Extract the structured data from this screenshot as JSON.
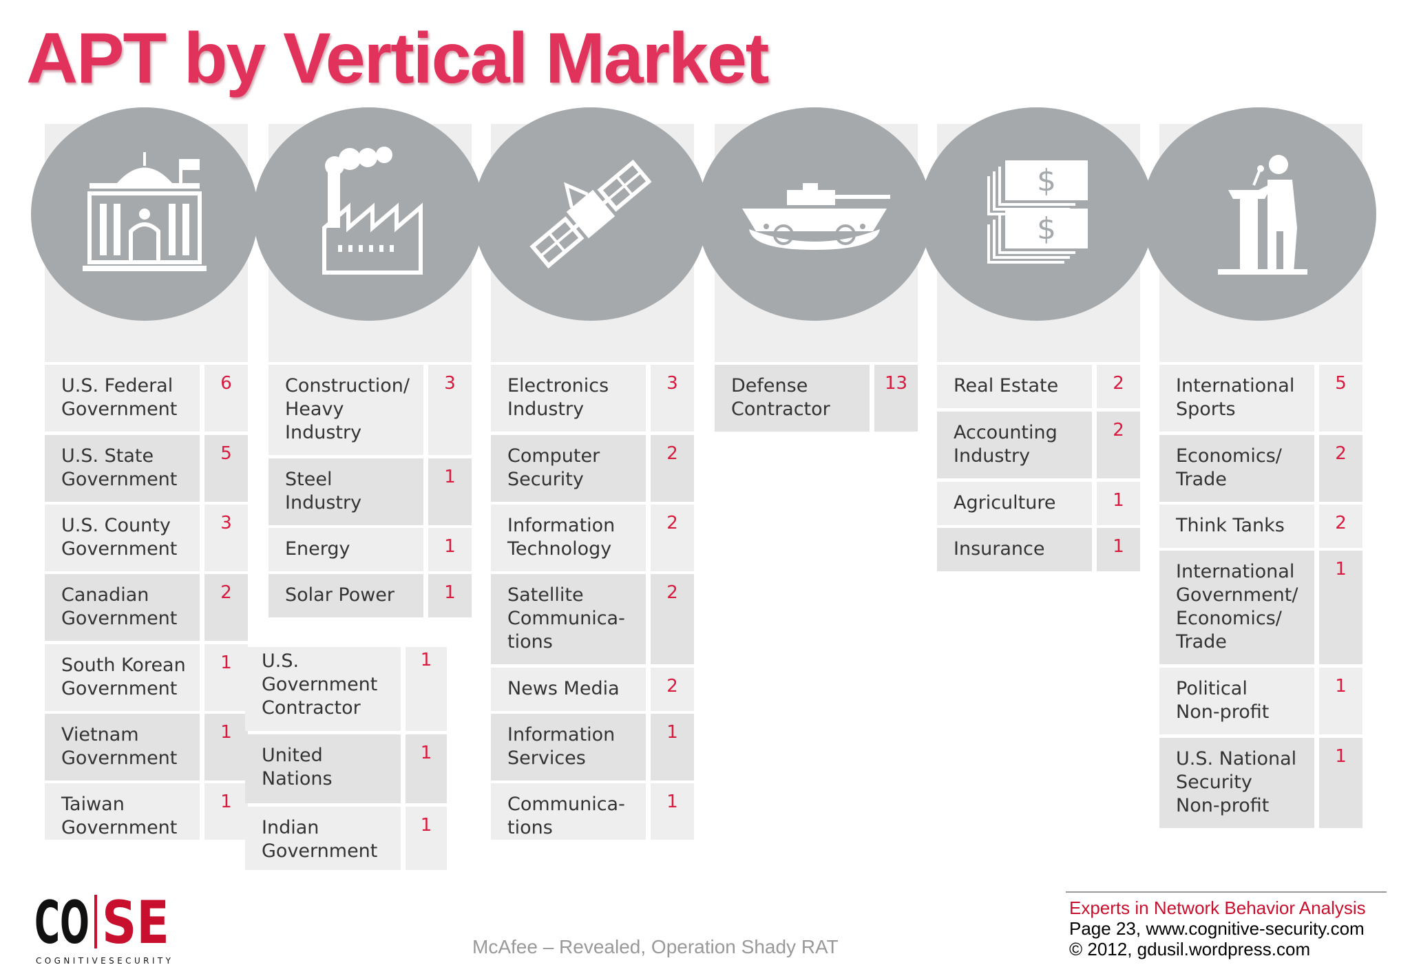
{
  "title": "APT by Vertical Market",
  "columns": [
    {
      "icon": "government-building-icon",
      "rows": [
        {
          "label": "U.S. Federal\nGovernment",
          "count": "6"
        },
        {
          "label": "U.S. State\nGovernment",
          "count": "5"
        },
        {
          "label": "U.S. County\nGovernment",
          "count": "3"
        },
        {
          "label": "Canadian\nGovernment",
          "count": "2"
        },
        {
          "label": "South Korean\nGovernment",
          "count": "1"
        },
        {
          "label": "Vietnam\nGovernment",
          "count": "1"
        },
        {
          "label": "Taiwan\nGovernment",
          "count": "1"
        }
      ]
    },
    {
      "icon": "factory-icon",
      "rows": [
        {
          "label": "Construction/\nHeavy\nIndustry",
          "count": "3"
        },
        {
          "label": "Steel\nIndustry",
          "count": "1"
        },
        {
          "label": "Energy",
          "count": "1"
        },
        {
          "label": "Solar Power",
          "count": "1"
        }
      ]
    },
    {
      "icon": "satellite-icon",
      "rows": [
        {
          "label": "Electronics\nIndustry",
          "count": "3"
        },
        {
          "label": "Computer\nSecurity",
          "count": "2"
        },
        {
          "label": "Information\nTechnology",
          "count": "2"
        },
        {
          "label": "Satellite\nCommunica-\ntions",
          "count": "2"
        },
        {
          "label": "News Media",
          "count": "2"
        },
        {
          "label": "Information\nServices",
          "count": "1"
        },
        {
          "label": "Communica-\ntions",
          "count": "1"
        }
      ]
    },
    {
      "icon": "tank-icon",
      "rows": [
        {
          "label": "Defense\nContractor",
          "count": "13"
        }
      ]
    },
    {
      "icon": "money-icon",
      "rows": [
        {
          "label": "Real Estate",
          "count": "2"
        },
        {
          "label": "Accounting\nIndustry",
          "count": "2"
        },
        {
          "label": "Agriculture",
          "count": "1"
        },
        {
          "label": "Insurance",
          "count": "1"
        }
      ]
    },
    {
      "icon": "speaker-podium-icon",
      "rows": [
        {
          "label": "International\nSports",
          "count": "5"
        },
        {
          "label": "Economics/\nTrade",
          "count": "2"
        },
        {
          "label": "Think Tanks",
          "count": "2"
        },
        {
          "label": "International\nGovernment/\nEconomics/\nTrade",
          "count": "1"
        },
        {
          "label": "Political\nNon-profit",
          "count": "1"
        },
        {
          "label": "U.S. National\nSecurity\nNon-profit",
          "count": "1"
        }
      ]
    }
  ],
  "extra_column": {
    "rows": [
      {
        "label": "U.S.\nGovernment\nContractor",
        "count": "1"
      },
      {
        "label": "United\nNations",
        "count": "1"
      },
      {
        "label": "Indian\nGovernment",
        "count": "1"
      }
    ]
  },
  "logo": {
    "text": "CO|SE",
    "subtext": "COGNITIVESECURITY"
  },
  "source": "McAfee – Revealed, Operation Shady RAT",
  "footer": {
    "line1": "Experts in Network Behavior Analysis",
    "line2": "Page 23, www.cognitive-security.com",
    "line3": "© 2012, gdusil.wordpress.com"
  },
  "colors": {
    "title": "#e0325a",
    "count": "#d71a3d",
    "circle": "#a5a9ac",
    "cell": "#eeeeee",
    "cell_alt": "#e2e2e2"
  }
}
